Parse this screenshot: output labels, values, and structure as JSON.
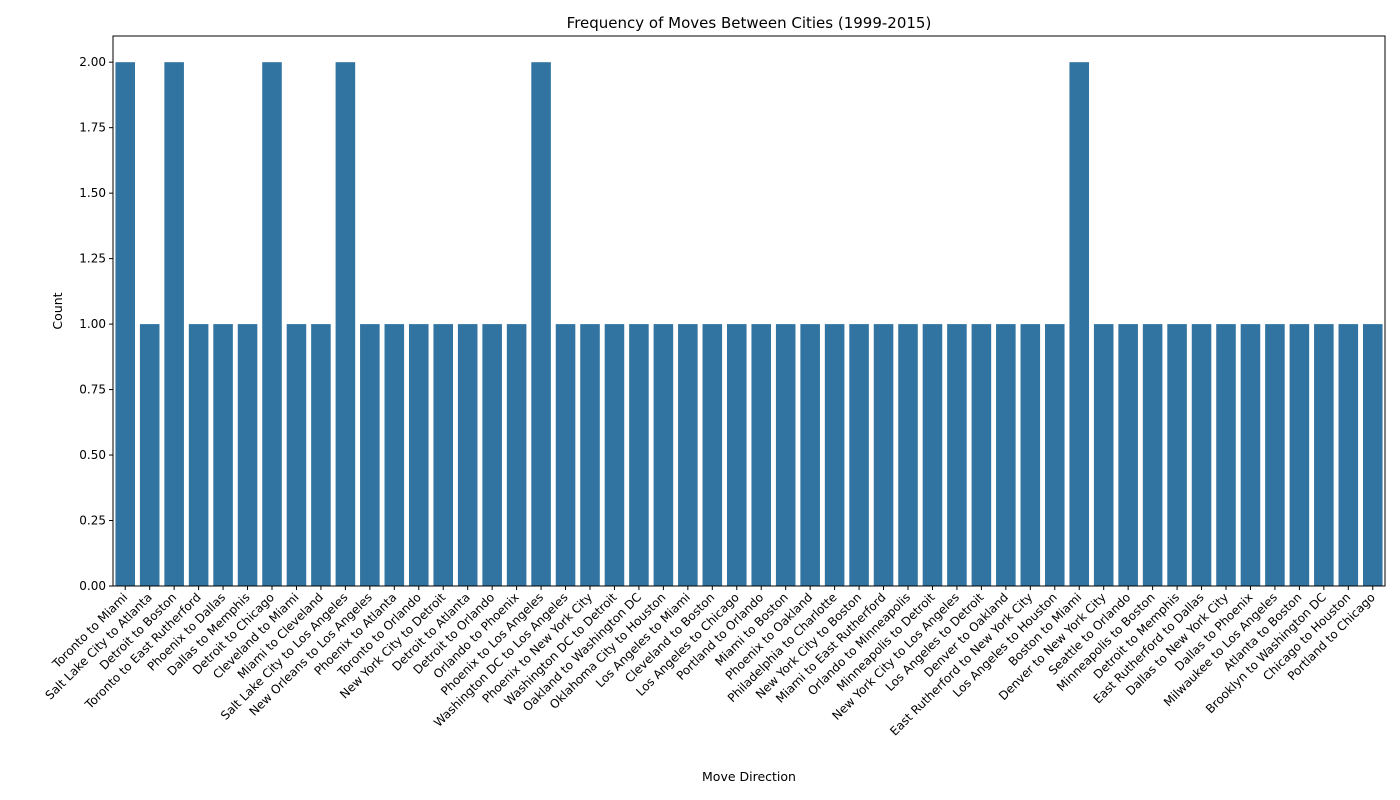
{
  "chart_data": {
    "type": "bar",
    "title": "Frequency of Moves Between Cities (1999-2015)",
    "xlabel": "Move Direction",
    "ylabel": "Count",
    "ylim": [
      0,
      2.1
    ],
    "yticks": [
      "0.00",
      "0.25",
      "0.50",
      "0.75",
      "1.00",
      "1.25",
      "1.50",
      "1.75",
      "2.00"
    ],
    "grid": false,
    "legend": "none",
    "bar_color": "#3274a1",
    "categories": [
      "Toronto to Miami",
      "Salt Lake City to Atlanta",
      "Detroit to Boston",
      "Toronto to East Rutherford",
      "Phoenix to Dallas",
      "Dallas to Memphis",
      "Detroit to Chicago",
      "Cleveland to Miami",
      "Miami to Cleveland",
      "Salt Lake City to Los Angeles",
      "New Orleans to Los Angeles",
      "Phoenix to Atlanta",
      "Toronto to Orlando",
      "New York City to Detroit",
      "Detroit to Atlanta",
      "Detroit to Orlando",
      "Orlando to Phoenix",
      "Phoenix to Los Angeles",
      "Washington DC to Los Angeles",
      "Phoenix to New York City",
      "Washington DC to Detroit",
      "Oakland to Washington DC",
      "Oklahoma City to Houston",
      "Los Angeles to Miami",
      "Cleveland to Boston",
      "Los Angeles to Chicago",
      "Portland to Orlando",
      "Miami to Boston",
      "Phoenix to Oakland",
      "Philadelphia to Charlotte",
      "New York City to Boston",
      "Miami to East Rutherford",
      "Orlando to Minneapolis",
      "Minneapolis to Detroit",
      "New York City to Los Angeles",
      "Los Angeles to Detroit",
      "Denver to Oakland",
      "East Rutherford to New York City",
      "Los Angeles to Houston",
      "Boston to Miami",
      "Denver to New York City",
      "Seattle to Orlando",
      "Minneapolis to Boston",
      "Detroit to Memphis",
      "East Rutherford to Dallas",
      "Dallas to New York City",
      "Dallas to Phoenix",
      "Milwaukee to Los Angeles",
      "Atlanta to Boston",
      "Brooklyn to Washington DC",
      "Chicago to Houston",
      "Portland to Chicago"
    ],
    "values": [
      2,
      1,
      2,
      1,
      1,
      1,
      2,
      1,
      1,
      2,
      1,
      1,
      1,
      1,
      1,
      1,
      1,
      2,
      1,
      1,
      1,
      1,
      1,
      1,
      1,
      1,
      1,
      1,
      1,
      1,
      1,
      1,
      1,
      1,
      1,
      1,
      1,
      1,
      1,
      2,
      1,
      1,
      1,
      1,
      1,
      1,
      1,
      1,
      1,
      1,
      1,
      1
    ]
  }
}
